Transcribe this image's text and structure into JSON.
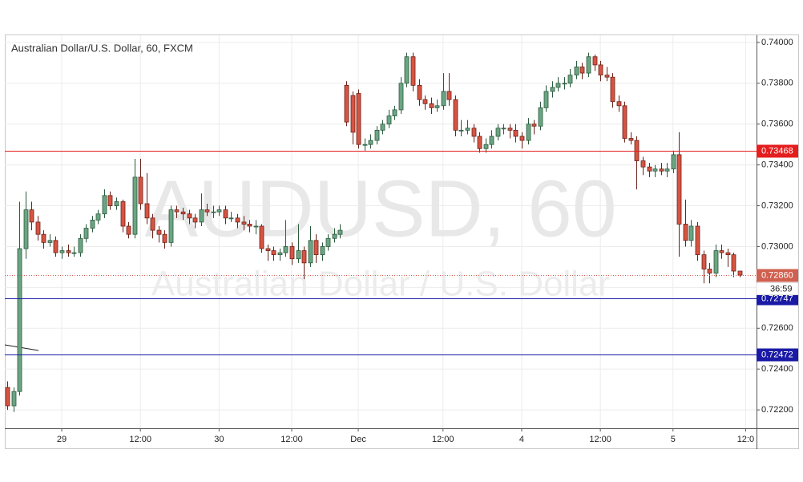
{
  "chart_data": {
    "type": "candlestick",
    "title": "Australian Dollar/U.S. Dollar, 60, FXCM",
    "watermark": "AUDUSD, 60",
    "watermark_subtitle": "Australian Dollar / U.S. Dollar",
    "up_color": "#6ba583",
    "down_color": "#d75442",
    "grid": true,
    "xlim": [
      -0.4,
      123.8
    ],
    "ylim": [
      0.7211,
      0.74035
    ],
    "yticks": [
      {
        "value": 0.722,
        "label": "0.72200"
      },
      {
        "value": 0.724,
        "label": "0.72400"
      },
      {
        "value": 0.726,
        "label": "0.72600"
      },
      {
        "value": 0.728,
        "label": "0.72800"
      },
      {
        "value": 0.73,
        "label": "0.73000"
      },
      {
        "value": 0.732,
        "label": "0.73200"
      },
      {
        "value": 0.734,
        "label": "0.73400"
      },
      {
        "value": 0.736,
        "label": "0.73600"
      },
      {
        "value": 0.738,
        "label": "0.73800"
      },
      {
        "value": 0.74,
        "label": "0.74000"
      }
    ],
    "xticks": [
      {
        "value": 9,
        "label": "29"
      },
      {
        "value": 22,
        "label": "12:00"
      },
      {
        "value": 35,
        "label": "30"
      },
      {
        "value": 47,
        "label": "12:00"
      },
      {
        "value": 58,
        "label": "Dec"
      },
      {
        "value": 72,
        "label": "12:00"
      },
      {
        "value": 85,
        "label": "4"
      },
      {
        "value": 98,
        "label": "12:00"
      },
      {
        "value": 110,
        "label": "5"
      },
      {
        "value": 122,
        "label": "12:0"
      }
    ],
    "levels": [
      {
        "value": 0.73468,
        "label": "0.73468",
        "color": "#e41e1e"
      },
      {
        "value": 0.72747,
        "label": "0.72747",
        "color": "#1a1aa6"
      },
      {
        "value": 0.72472,
        "label": "0.72472",
        "color": "#1a1aa6"
      }
    ],
    "last_price": {
      "value": 0.7286,
      "label": "0.72860",
      "color": "#d0604f"
    },
    "countdown": "36:59",
    "candles": [
      [
        0.7231,
        0.7234,
        0.722,
        0.7222
      ],
      [
        0.7222,
        0.7231,
        0.7219,
        0.7229
      ],
      [
        0.7229,
        0.7322,
        0.7227,
        0.7299
      ],
      [
        0.7299,
        0.7327,
        0.7294,
        0.7318
      ],
      [
        0.7318,
        0.7322,
        0.7308,
        0.7312
      ],
      [
        0.7312,
        0.7315,
        0.7303,
        0.7306
      ],
      [
        0.7306,
        0.7308,
        0.7299,
        0.7302
      ],
      [
        0.7302,
        0.7306,
        0.73,
        0.7303
      ],
      [
        0.7303,
        0.7305,
        0.7295,
        0.7297
      ],
      [
        0.7297,
        0.73,
        0.7294,
        0.7298
      ],
      [
        0.7298,
        0.7301,
        0.7295,
        0.7297
      ],
      [
        0.7297,
        0.73,
        0.7295,
        0.7297
      ],
      [
        0.7297,
        0.7306,
        0.7295,
        0.7304
      ],
      [
        0.7304,
        0.7311,
        0.7302,
        0.7309
      ],
      [
        0.7309,
        0.7315,
        0.7307,
        0.7313
      ],
      [
        0.7313,
        0.7318,
        0.7311,
        0.7316
      ],
      [
        0.7316,
        0.7328,
        0.7314,
        0.7325
      ],
      [
        0.7325,
        0.7327,
        0.7318,
        0.732
      ],
      [
        0.732,
        0.7324,
        0.7318,
        0.7322
      ],
      [
        0.7322,
        0.7323,
        0.7307,
        0.731
      ],
      [
        0.731,
        0.7312,
        0.7304,
        0.7306
      ],
      [
        0.7306,
        0.7343,
        0.7304,
        0.7334
      ],
      [
        0.7334,
        0.7343,
        0.7318,
        0.7321
      ],
      [
        0.7321,
        0.7336,
        0.7311,
        0.7314
      ],
      [
        0.7314,
        0.7316,
        0.7304,
        0.7308
      ],
      [
        0.7308,
        0.731,
        0.7302,
        0.7306
      ],
      [
        0.7306,
        0.7308,
        0.7299,
        0.7302
      ],
      [
        0.7302,
        0.732,
        0.73,
        0.7318
      ],
      [
        0.7318,
        0.732,
        0.7314,
        0.7317
      ],
      [
        0.7317,
        0.7319,
        0.7313,
        0.7316
      ],
      [
        0.7316,
        0.7318,
        0.7311,
        0.7314
      ],
      [
        0.7314,
        0.7316,
        0.7309,
        0.7312
      ],
      [
        0.7312,
        0.7326,
        0.731,
        0.7318
      ],
      [
        0.7318,
        0.7321,
        0.7315,
        0.7317
      ],
      [
        0.7317,
        0.732,
        0.7314,
        0.7317
      ],
      [
        0.7317,
        0.732,
        0.7315,
        0.7318
      ],
      [
        0.7318,
        0.732,
        0.7311,
        0.7314
      ],
      [
        0.7314,
        0.7317,
        0.7312,
        0.7314
      ],
      [
        0.7314,
        0.7316,
        0.7309,
        0.7312
      ],
      [
        0.7312,
        0.7315,
        0.7308,
        0.7311
      ],
      [
        0.7311,
        0.7313,
        0.7307,
        0.731
      ],
      [
        0.731,
        0.7313,
        0.7306,
        0.731
      ],
      [
        0.731,
        0.7311,
        0.7297,
        0.7299
      ],
      [
        0.7299,
        0.7301,
        0.7293,
        0.7298
      ],
      [
        0.7298,
        0.73,
        0.7293,
        0.7296
      ],
      [
        0.7296,
        0.7299,
        0.7293,
        0.7297
      ],
      [
        0.7297,
        0.7313,
        0.7295,
        0.73
      ],
      [
        0.73,
        0.7302,
        0.7291,
        0.7294
      ],
      [
        0.7294,
        0.7311,
        0.7292,
        0.7298
      ],
      [
        0.7298,
        0.73,
        0.7284,
        0.7292
      ],
      [
        0.7292,
        0.731,
        0.729,
        0.7303
      ],
      [
        0.7303,
        0.7306,
        0.7292,
        0.7296
      ],
      [
        0.7296,
        0.7302,
        0.7293,
        0.73
      ],
      [
        0.73,
        0.7306,
        0.7298,
        0.7304
      ],
      [
        0.7304,
        0.7309,
        0.7302,
        0.7306
      ],
      [
        0.7306,
        0.7311,
        0.7304,
        0.7308
      ],
      [
        0.7379,
        0.7381,
        0.7359,
        0.7361
      ],
      [
        0.7374,
        0.7376,
        0.735,
        0.7356
      ],
      [
        0.7375,
        0.7377,
        0.7348,
        0.735
      ],
      [
        0.735,
        0.7353,
        0.7347,
        0.735
      ],
      [
        0.735,
        0.7355,
        0.7348,
        0.7352
      ],
      [
        0.7352,
        0.7359,
        0.735,
        0.7357
      ],
      [
        0.7357,
        0.7362,
        0.7355,
        0.736
      ],
      [
        0.736,
        0.7367,
        0.7358,
        0.7364
      ],
      [
        0.7364,
        0.7369,
        0.7362,
        0.7367
      ],
      [
        0.7367,
        0.7383,
        0.7365,
        0.738
      ],
      [
        0.738,
        0.7395,
        0.7378,
        0.7393
      ],
      [
        0.7393,
        0.7395,
        0.7376,
        0.7379
      ],
      [
        0.7379,
        0.7382,
        0.7369,
        0.7372
      ],
      [
        0.7372,
        0.7374,
        0.7367,
        0.737
      ],
      [
        0.737,
        0.7373,
        0.7365,
        0.7368
      ],
      [
        0.7368,
        0.7372,
        0.7366,
        0.7369
      ],
      [
        0.7369,
        0.7385,
        0.7367,
        0.7376
      ],
      [
        0.7376,
        0.7385,
        0.7369,
        0.7372
      ],
      [
        0.7372,
        0.7374,
        0.7354,
        0.7357
      ],
      [
        0.7357,
        0.7362,
        0.7354,
        0.7357
      ],
      [
        0.7357,
        0.7362,
        0.7355,
        0.7358
      ],
      [
        0.7358,
        0.736,
        0.7351,
        0.7354
      ],
      [
        0.7354,
        0.7356,
        0.7346,
        0.7348
      ],
      [
        0.7348,
        0.7353,
        0.7346,
        0.735
      ],
      [
        0.735,
        0.7357,
        0.7348,
        0.7354
      ],
      [
        0.7354,
        0.736,
        0.7352,
        0.7358
      ],
      [
        0.7358,
        0.736,
        0.7355,
        0.7358
      ],
      [
        0.7358,
        0.736,
        0.7353,
        0.7357
      ],
      [
        0.7357,
        0.736,
        0.7351,
        0.7354
      ],
      [
        0.7354,
        0.7356,
        0.7348,
        0.7352
      ],
      [
        0.7352,
        0.7363,
        0.735,
        0.736
      ],
      [
        0.736,
        0.7362,
        0.7355,
        0.7359
      ],
      [
        0.7359,
        0.7371,
        0.7357,
        0.7368
      ],
      [
        0.7368,
        0.7379,
        0.7366,
        0.7376
      ],
      [
        0.7376,
        0.7381,
        0.7373,
        0.7378
      ],
      [
        0.7378,
        0.7383,
        0.7376,
        0.738
      ],
      [
        0.738,
        0.7383,
        0.7377,
        0.738
      ],
      [
        0.738,
        0.7387,
        0.7378,
        0.7384
      ],
      [
        0.7384,
        0.7391,
        0.7382,
        0.7388
      ],
      [
        0.7388,
        0.739,
        0.7382,
        0.7385
      ],
      [
        0.7385,
        0.7395,
        0.7383,
        0.7393
      ],
      [
        0.7393,
        0.7394,
        0.7386,
        0.7389
      ],
      [
        0.7389,
        0.7391,
        0.7381,
        0.7384
      ],
      [
        0.7384,
        0.7388,
        0.7381,
        0.7383
      ],
      [
        0.7383,
        0.7385,
        0.7368,
        0.7371
      ],
      [
        0.7371,
        0.7374,
        0.7366,
        0.7369
      ],
      [
        0.7369,
        0.7371,
        0.7351,
        0.7353
      ],
      [
        0.7353,
        0.7356,
        0.735,
        0.7352
      ],
      [
        0.7352,
        0.7354,
        0.7328,
        0.7342
      ],
      [
        0.7342,
        0.7344,
        0.7335,
        0.7339
      ],
      [
        0.7339,
        0.7341,
        0.7334,
        0.7337
      ],
      [
        0.7337,
        0.734,
        0.7334,
        0.7338
      ],
      [
        0.7338,
        0.7341,
        0.7335,
        0.7337
      ],
      [
        0.7337,
        0.7341,
        0.7334,
        0.7338
      ],
      [
        0.7338,
        0.7347,
        0.7336,
        0.7345
      ],
      [
        0.7345,
        0.7356,
        0.7295,
        0.7311
      ],
      [
        0.7311,
        0.7323,
        0.73,
        0.7303
      ],
      [
        0.7303,
        0.7313,
        0.73,
        0.731
      ],
      [
        0.731,
        0.7312,
        0.7293,
        0.7296
      ],
      [
        0.7296,
        0.7298,
        0.7282,
        0.7289
      ],
      [
        0.7289,
        0.7292,
        0.7282,
        0.7287
      ],
      [
        0.7287,
        0.7301,
        0.7285,
        0.7298
      ],
      [
        0.7298,
        0.7301,
        0.7294,
        0.7297
      ],
      [
        0.7297,
        0.7299,
        0.729,
        0.7296
      ],
      [
        0.7296,
        0.7297,
        0.7285,
        0.7288
      ],
      [
        0.7288,
        0.7288,
        0.7285,
        0.7286
      ]
    ]
  }
}
